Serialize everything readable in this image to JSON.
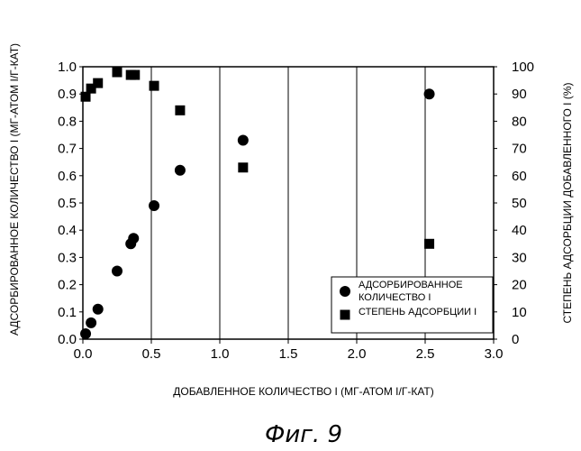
{
  "chart_data": {
    "type": "scatter",
    "xlabel": "ДОБАВЛЕННОЕ КОЛИЧЕСТВО I (МГ-АТОМ I/Г-КАТ)",
    "ylabel": "АДСОРБИРОВАННОЕ КОЛИЧЕСТВО I (МГ-АТОМ I/Г-КАТ)",
    "y2label": "СТЕПЕНЬ АДСОРБЦИИ ДОБАВЛЕННОГО I (%)",
    "xlim": [
      0,
      3.0
    ],
    "ylim": [
      0,
      1.0
    ],
    "y2lim": [
      0,
      100
    ],
    "xticks": [
      "0.0",
      "0.5",
      "1.0",
      "1.5",
      "2.0",
      "2.5",
      "3.0"
    ],
    "yticks": [
      "0.0",
      "0.1",
      "0.2",
      "0.3",
      "0.4",
      "0.5",
      "0.6",
      "0.7",
      "0.8",
      "0.9",
      "1.0"
    ],
    "y2ticks": [
      "0",
      "10",
      "20",
      "30",
      "40",
      "50",
      "60",
      "70",
      "80",
      "90",
      "100"
    ],
    "grid": "vertical",
    "legend_position": "bottom-right",
    "series": [
      {
        "name": "АДСОРБИРОВАННОЕ КОЛИЧЕСТВО I",
        "name_lines": [
          "АДСОРБИРОВАННОЕ",
          "КОЛИЧЕСТВО I"
        ],
        "marker": "circle",
        "axis": "left",
        "x": [
          0.02,
          0.06,
          0.11,
          0.25,
          0.35,
          0.37,
          0.52,
          0.71,
          1.17,
          2.53
        ],
        "y": [
          0.02,
          0.06,
          0.11,
          0.25,
          0.35,
          0.37,
          0.49,
          0.62,
          0.73,
          0.9
        ]
      },
      {
        "name": "СТЕПЕНЬ АДСОРБЦИИ I",
        "name_lines": [
          "СТЕПЕНЬ АДСОРБЦИИ I"
        ],
        "marker": "square",
        "axis": "right",
        "x": [
          0.02,
          0.06,
          0.11,
          0.25,
          0.35,
          0.38,
          0.52,
          0.71,
          1.17,
          2.53
        ],
        "y": [
          89,
          92,
          94,
          98,
          97,
          97,
          93,
          84,
          63,
          35
        ]
      }
    ]
  },
  "caption": "Фиг. 9"
}
